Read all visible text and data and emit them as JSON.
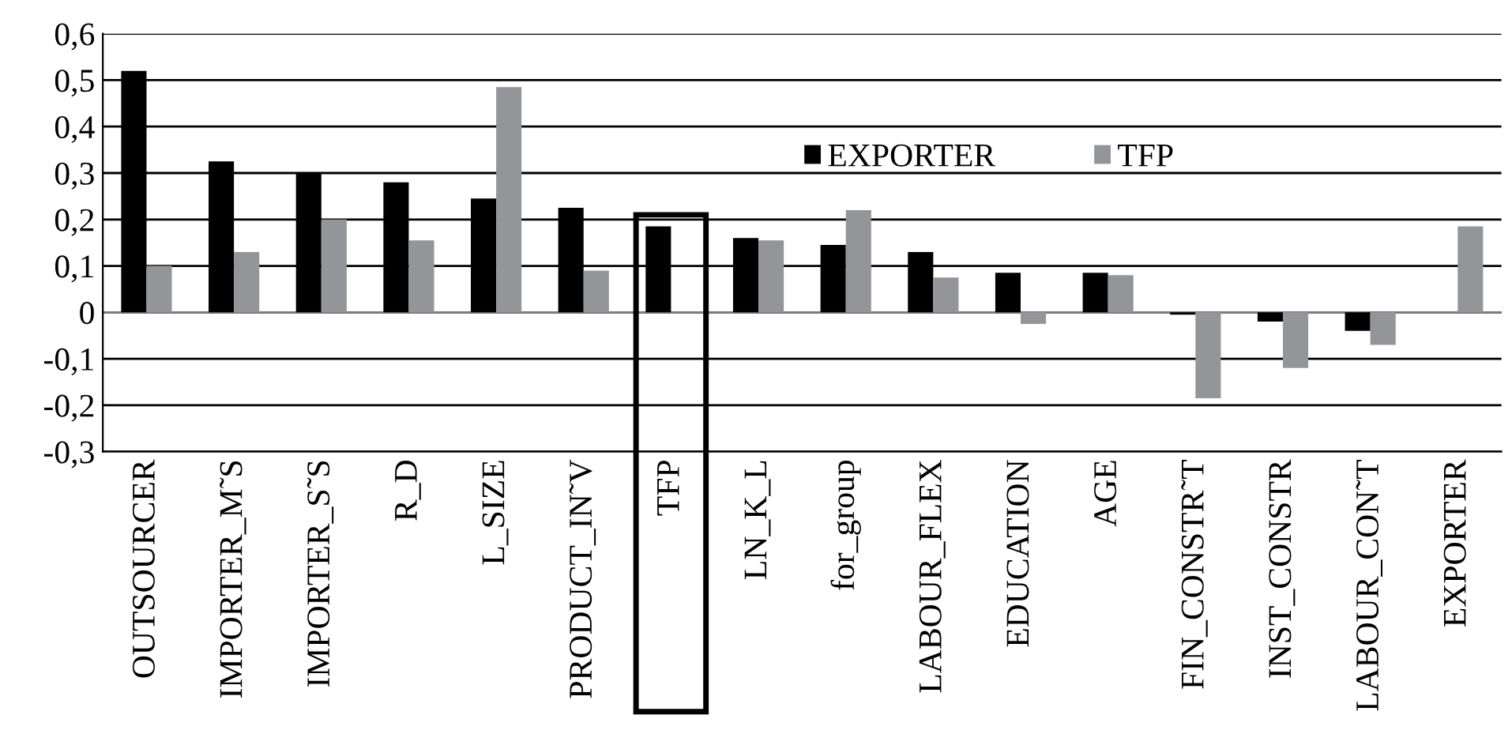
{
  "chart_data": {
    "type": "bar",
    "categories": [
      "OUTSOURCER",
      "IMPORTER_M˜S",
      "IMPORTER_S˜S",
      "R_D",
      "L_SIZE",
      "PRODUCT_IN˜V",
      "TFP",
      "LN_K_L",
      "for_group",
      "LABOUR_FLEX",
      "EDUCATION",
      "AGE",
      "FIN_CONSTR˜T",
      "INST_CONSTR",
      "LABOUR_CON˜T",
      "EXPORTER"
    ],
    "series": [
      {
        "name": "EXPORTER",
        "color": "#000000",
        "values": [
          0.52,
          0.325,
          0.3,
          0.28,
          0.245,
          0.225,
          0.185,
          0.16,
          0.145,
          0.13,
          0.085,
          0.085,
          -0.005,
          -0.02,
          -0.04,
          null
        ]
      },
      {
        "name": "TFP",
        "color": "#939598",
        "values": [
          0.1,
          0.13,
          0.2,
          0.155,
          0.485,
          0.09,
          null,
          0.155,
          0.22,
          0.075,
          -0.025,
          0.08,
          -0.185,
          -0.12,
          -0.07,
          0.185
        ]
      }
    ],
    "ylim": [
      -0.3,
      0.6
    ],
    "yticks": [
      {
        "value": -0.3,
        "label": "-0,3"
      },
      {
        "value": -0.2,
        "label": "-0,2"
      },
      {
        "value": -0.1,
        "label": "-0,1"
      },
      {
        "value": 0,
        "label": "0"
      },
      {
        "value": 0.1,
        "label": "0,1"
      },
      {
        "value": 0.2,
        "label": "0,2"
      },
      {
        "value": 0.3,
        "label": "0,3"
      },
      {
        "value": 0.4,
        "label": "0,4"
      },
      {
        "value": 0.5,
        "label": "0,5"
      },
      {
        "value": 0.6,
        "label": "0,6"
      }
    ],
    "grid": "y",
    "legend": "top right"
  }
}
